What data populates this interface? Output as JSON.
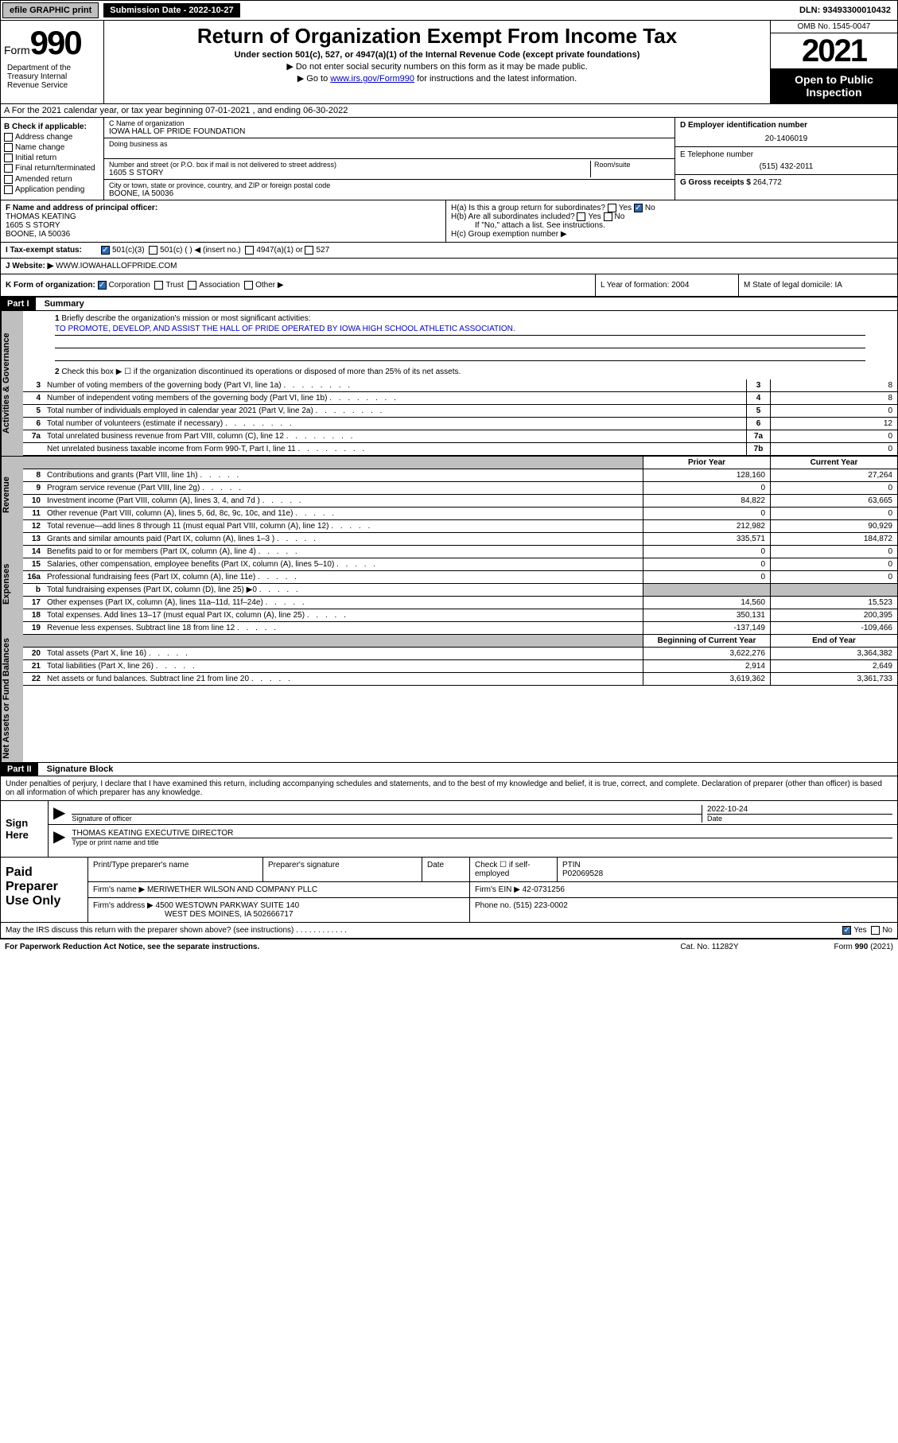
{
  "topbar": {
    "efile": "efile GRAPHIC print",
    "sub_label": "Submission Date - 2022-10-27",
    "dln": "DLN: 93493300010432"
  },
  "header": {
    "form": "Form",
    "num": "990",
    "title": "Return of Organization Exempt From Income Tax",
    "sub1": "Under section 501(c), 527, or 4947(a)(1) of the Internal Revenue Code (except private foundations)",
    "sub2": "▶ Do not enter social security numbers on this form as it may be made public.",
    "sub3_pre": "▶ Go to ",
    "sub3_link": "www.irs.gov/Form990",
    "sub3_post": " for instructions and the latest information.",
    "omb": "OMB No. 1545-0047",
    "year": "2021",
    "open": "Open to Public Inspection",
    "dept": "Department of the Treasury Internal Revenue Service"
  },
  "secA": "A For the 2021 calendar year, or tax year beginning 07-01-2021 , and ending 06-30-2022",
  "colB": {
    "hdr": "B Check if applicable:",
    "items": [
      "Address change",
      "Name change",
      "Initial return",
      "Final return/terminated",
      "Amended return",
      "Application pending"
    ]
  },
  "colC": {
    "name_label": "C Name of organization",
    "name": "IOWA HALL OF PRIDE FOUNDATION",
    "dba_label": "Doing business as",
    "addr_label": "Number and street (or P.O. box if mail is not delivered to street address)",
    "room_label": "Room/suite",
    "addr": "1605 S STORY",
    "city_label": "City or town, state or province, country, and ZIP or foreign postal code",
    "city": "BOONE, IA  50036"
  },
  "colD": {
    "ein_label": "D Employer identification number",
    "ein": "20-1406019",
    "tel_label": "E Telephone number",
    "tel": "(515) 432-2011",
    "gross_label": "G Gross receipts $",
    "gross": "264,772"
  },
  "rowF": {
    "label": "F Name and address of principal officer:",
    "name": "THOMAS KEATING",
    "addr": "1605 S STORY",
    "city": "BOONE, IA  50036",
    "ha": "H(a) Is this a group return for subordinates?",
    "hb": "H(b) Are all subordinates included?",
    "hb_note": "If \"No,\" attach a list. See instructions.",
    "hc": "H(c) Group exemption number ▶",
    "yes": "Yes",
    "no": "No"
  },
  "rowI": {
    "label": "I   Tax-exempt status:",
    "o1": "501(c)(3)",
    "o2": "501(c) (  ) ◀ (insert no.)",
    "o3": "4947(a)(1) or",
    "o4": "527"
  },
  "rowJ": {
    "label": "J   Website: ▶",
    "val": "WWW.IOWAHALLOFPRIDE.COM"
  },
  "rowK": {
    "label": "K Form of organization:",
    "corp": "Corporation",
    "trust": "Trust",
    "assoc": "Association",
    "other": "Other ▶",
    "L": "L Year of formation: 2004",
    "M": "M State of legal domicile: IA"
  },
  "part1": {
    "hdr": "Part I",
    "title": "Summary",
    "q1": "Briefly describe the organization's mission or most significant activities:",
    "mission": "TO PROMOTE, DEVELOP, AND ASSIST THE HALL OF PRIDE OPERATED BY IOWA HIGH SCHOOL ATHLETIC ASSOCIATION.",
    "q2": "Check this box ▶ ☐ if the organization discontinued its operations or disposed of more than 25% of its net assets.",
    "rows_gov": [
      {
        "n": "3",
        "d": "Number of voting members of the governing body (Part VI, line 1a)",
        "b": "3",
        "v": "8"
      },
      {
        "n": "4",
        "d": "Number of independent voting members of the governing body (Part VI, line 1b)",
        "b": "4",
        "v": "8"
      },
      {
        "n": "5",
        "d": "Total number of individuals employed in calendar year 2021 (Part V, line 2a)",
        "b": "5",
        "v": "0"
      },
      {
        "n": "6",
        "d": "Total number of volunteers (estimate if necessary)",
        "b": "6",
        "v": "12"
      },
      {
        "n": "7a",
        "d": "Total unrelated business revenue from Part VIII, column (C), line 12",
        "b": "7a",
        "v": "0"
      },
      {
        "n": "",
        "d": "Net unrelated business taxable income from Form 990-T, Part I, line 11",
        "b": "7b",
        "v": "0"
      }
    ],
    "col_prior": "Prior Year",
    "col_curr": "Current Year",
    "rows_rev": [
      {
        "n": "8",
        "d": "Contributions and grants (Part VIII, line 1h)",
        "p": "128,160",
        "c": "27,264"
      },
      {
        "n": "9",
        "d": "Program service revenue (Part VIII, line 2g)",
        "p": "0",
        "c": "0"
      },
      {
        "n": "10",
        "d": "Investment income (Part VIII, column (A), lines 3, 4, and 7d )",
        "p": "84,822",
        "c": "63,665"
      },
      {
        "n": "11",
        "d": "Other revenue (Part VIII, column (A), lines 5, 6d, 8c, 9c, 10c, and 11e)",
        "p": "0",
        "c": "0"
      },
      {
        "n": "12",
        "d": "Total revenue—add lines 8 through 11 (must equal Part VIII, column (A), line 12)",
        "p": "212,982",
        "c": "90,929"
      }
    ],
    "rows_exp": [
      {
        "n": "13",
        "d": "Grants and similar amounts paid (Part IX, column (A), lines 1–3 )",
        "p": "335,571",
        "c": "184,872"
      },
      {
        "n": "14",
        "d": "Benefits paid to or for members (Part IX, column (A), line 4)",
        "p": "0",
        "c": "0"
      },
      {
        "n": "15",
        "d": "Salaries, other compensation, employee benefits (Part IX, column (A), lines 5–10)",
        "p": "0",
        "c": "0"
      },
      {
        "n": "16a",
        "d": "Professional fundraising fees (Part IX, column (A), line 11e)",
        "p": "0",
        "c": "0"
      },
      {
        "n": "b",
        "d": "Total fundraising expenses (Part IX, column (D), line 25) ▶0",
        "p": "",
        "c": "",
        "shade": true
      },
      {
        "n": "17",
        "d": "Other expenses (Part IX, column (A), lines 11a–11d, 11f–24e)",
        "p": "14,560",
        "c": "15,523"
      },
      {
        "n": "18",
        "d": "Total expenses. Add lines 13–17 (must equal Part IX, column (A), line 25)",
        "p": "350,131",
        "c": "200,395"
      },
      {
        "n": "19",
        "d": "Revenue less expenses. Subtract line 18 from line 12",
        "p": "-137,149",
        "c": "-109,466"
      }
    ],
    "col_beg": "Beginning of Current Year",
    "col_end": "End of Year",
    "rows_net": [
      {
        "n": "20",
        "d": "Total assets (Part X, line 16)",
        "p": "3,622,276",
        "c": "3,364,382"
      },
      {
        "n": "21",
        "d": "Total liabilities (Part X, line 26)",
        "p": "2,914",
        "c": "2,649"
      },
      {
        "n": "22",
        "d": "Net assets or fund balances. Subtract line 21 from line 20",
        "p": "3,619,362",
        "c": "3,361,733"
      }
    ],
    "side_gov": "Activities & Governance",
    "side_rev": "Revenue",
    "side_exp": "Expenses",
    "side_net": "Net Assets or Fund Balances"
  },
  "part2": {
    "hdr": "Part II",
    "title": "Signature Block",
    "decl": "Under penalties of perjury, I declare that I have examined this return, including accompanying schedules and statements, and to the best of my knowledge and belief, it is true, correct, and complete. Declaration of preparer (other than officer) is based on all information of which preparer has any knowledge.",
    "sign_here": "Sign Here",
    "sig_officer": "Signature of officer",
    "sig_date": "2022-10-24",
    "date_lbl": "Date",
    "name_title": "THOMAS KEATING  EXECUTIVE DIRECTOR",
    "name_lbl": "Type or print name and title",
    "paid": "Paid Preparer Use Only",
    "prep_name_lbl": "Print/Type preparer's name",
    "prep_sig_lbl": "Preparer's signature",
    "check_if": "Check ☐ if self-employed",
    "ptin_lbl": "PTIN",
    "ptin": "P02069528",
    "firm_name_lbl": "Firm's name   ▶",
    "firm_name": "MERIWETHER WILSON AND COMPANY PLLC",
    "firm_ein_lbl": "Firm's EIN ▶",
    "firm_ein": "42-0731256",
    "firm_addr_lbl": "Firm's address ▶",
    "firm_addr1": "4500 WESTOWN PARKWAY SUITE 140",
    "firm_addr2": "WEST DES MOINES, IA  502666717",
    "phone_lbl": "Phone no.",
    "phone": "(515) 223-0002",
    "discuss": "May the IRS discuss this return with the preparer shown above? (see instructions)"
  },
  "footer": {
    "left": "For Paperwork Reduction Act Notice, see the separate instructions.",
    "mid": "Cat. No. 11282Y",
    "right": "Form 990 (2021)"
  }
}
